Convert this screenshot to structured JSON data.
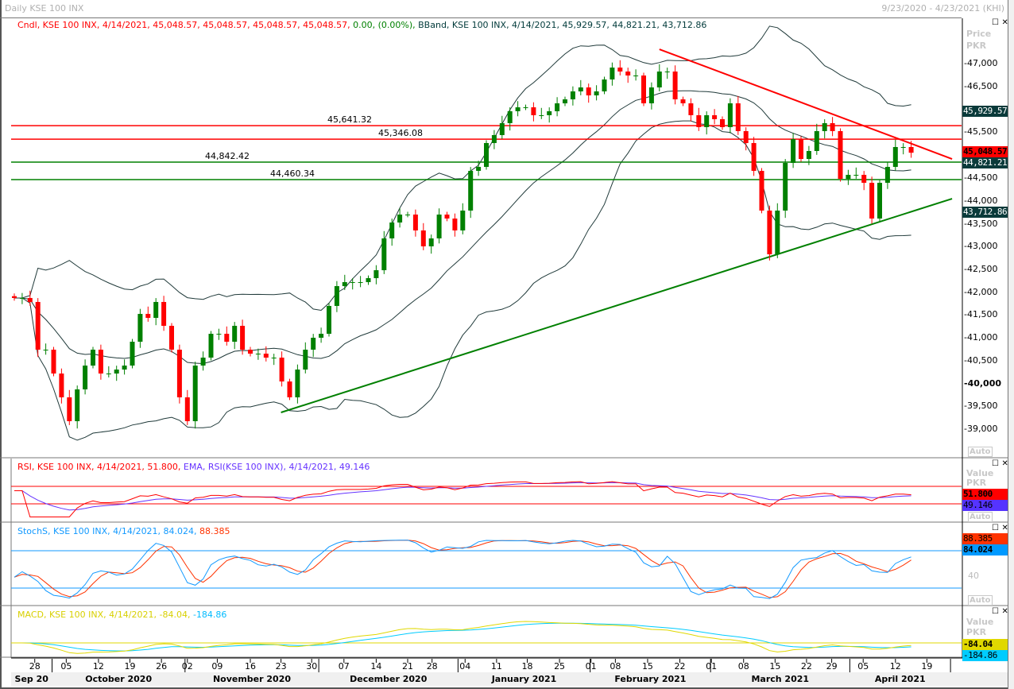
{
  "window": {
    "title": "Daily KSE 100 INX",
    "range": "9/23/2020 - 4/23/2021 (KHI)"
  },
  "main": {
    "legend": {
      "candle": "Cndl, KSE 100 INX, 4/14/2021, 45,048.57, 45,048.57, 45,048.57, 45,048.57,",
      "change": "0.00, (0.00%),",
      "bband": "BBand, KSE 100 INX, 4/14/2021, 45,929.57, 44,821.21, 43,712.86"
    },
    "axis_header": [
      "Price",
      "PKR"
    ],
    "axis_auto": "Auto",
    "tags": {
      "upper": "45,929.57",
      "last": "45,048.57",
      "middle": "44,821.21",
      "lower": "43,712.86"
    },
    "levels": [
      {
        "label": "45,641.32",
        "value": 45641.32,
        "color": "#ff0000"
      },
      {
        "label": "45,346.08",
        "value": 45346.08,
        "color": "#ff0000"
      },
      {
        "label": "44,842.42",
        "value": 44842.42,
        "color": "#008000"
      },
      {
        "label": "44,460.34",
        "value": 44460.34,
        "color": "#008000"
      }
    ]
  },
  "rsi": {
    "legend_rsi": "RSI, KSE 100 INX, 4/14/2021, 51.800,",
    "legend_ema": "EMA, RSI(KSE 100 INX), 4/14/2021, 49.146",
    "header": [
      "Value",
      "PKR"
    ],
    "tag_rsi": "51.800",
    "tag_ema": "49.146",
    "auto": "Auto"
  },
  "stoch": {
    "legend_k": "StochS, KSE 100 INX, 4/14/2021, 84.024,",
    "legend_d": "88.385",
    "tag_d": "88.385",
    "tag_k": "84.024",
    "tick40": "40",
    "auto": "Auto"
  },
  "macd": {
    "legend_macd": "MACD, KSE 100 INX, 4/14/2021, -84.04,",
    "legend_signal": "-184.86",
    "header": [
      "Value",
      "PKR"
    ],
    "tag_macd": "-84.04",
    "tag_signal": "-184.86"
  },
  "colors": {
    "up": "#008000",
    "down": "#ff0000",
    "band": "#203a3a",
    "rsi": "#ff0000",
    "ema": "#6633ff",
    "stoch_k": "#1199ff",
    "stoch_d": "#ff3300",
    "macd": "#e0d800",
    "signal": "#00ccff"
  },
  "chart_data": {
    "type": "candlestick",
    "title": "Daily KSE 100 INX",
    "ylabel": "Price PKR",
    "ylim": [
      38500,
      47600
    ],
    "yticks": [
      39000,
      39500,
      40000,
      40500,
      41000,
      41500,
      42000,
      42500,
      43000,
      43500,
      44000,
      44500,
      45500,
      46500,
      47000
    ],
    "closes": [
      41870,
      41870,
      41783,
      40739,
      40739,
      40217,
      39696,
      39174,
      39870,
      40391,
      40739,
      40217,
      40217,
      40304,
      40391,
      40913,
      41522,
      41435,
      41783,
      41261,
      40739,
      39696,
      39174,
      40391,
      40565,
      41087,
      41087,
      40913,
      41261,
      40739,
      40652,
      40652,
      40565,
      40565,
      40043,
      39696,
      40304,
      40739,
      41000,
      41087,
      41696,
      42130,
      42217,
      42217,
      42217,
      42304,
      42478,
      43174,
      43522,
      43696,
      43696,
      43348,
      43000,
      43174,
      43696,
      43609,
      43348,
      43783,
      44652,
      44739,
      45261,
      45435,
      45696,
      45957,
      46043,
      46043,
      45870,
      45870,
      45957,
      46130,
      46217,
      46391,
      46478,
      46304,
      46391,
      46652,
      46913,
      46826,
      46739,
      46739,
      46130,
      46478,
      46826,
      46826,
      46217,
      46130,
      45870,
      45609,
      45870,
      45783,
      45609,
      46130,
      45522,
      45261,
      44652,
      43783,
      42826,
      43783,
      44826,
      45348,
      44913,
      45087,
      45522,
      45696,
      45522,
      44478,
      44565,
      44565,
      44391,
      43609,
      44391,
      44739,
      45174,
      45174,
      45048.57
    ],
    "trendlines": [
      {
        "color": "#ff0000",
        "from": [
          82,
          47313
        ],
        "to": [
          119.2,
          44913
        ]
      },
      {
        "color": "#008000",
        "from": [
          33.9,
          39365
        ],
        "to": [
          119.2,
          44043
        ]
      }
    ],
    "xticks": [
      [
        "28",
        2.6
      ],
      [
        "05",
        6.6
      ],
      [
        "12",
        10.7
      ],
      [
        "19",
        14.7
      ],
      [
        "26",
        18.7
      ],
      [
        "02",
        22
      ],
      [
        "09",
        25.8
      ],
      [
        "16",
        30
      ],
      [
        "23",
        33.9
      ],
      [
        "30",
        37.8
      ],
      [
        "07",
        41.9
      ],
      [
        "14",
        46
      ],
      [
        "21",
        50
      ],
      [
        "28",
        53.1
      ],
      [
        "04",
        57.3
      ],
      [
        "11",
        61.3
      ],
      [
        "18",
        65.2
      ],
      [
        "25",
        69.3
      ],
      [
        "01",
        73.3
      ],
      [
        "08",
        76.4
      ],
      [
        "15",
        80.5
      ],
      [
        "22",
        84.6
      ],
      [
        "01",
        88.6
      ],
      [
        "08",
        92.7
      ],
      [
        "15",
        96.7
      ],
      [
        "22",
        100.7
      ],
      [
        "29",
        103.9
      ],
      [
        "05",
        107.9
      ],
      [
        "12",
        112
      ],
      [
        "19",
        116
      ]
    ],
    "months": [
      [
        "Sep 20",
        -0.5,
        4.8
      ],
      [
        "October 2020",
        4.8,
        21.7
      ],
      [
        "November 2020",
        21.7,
        38.7
      ],
      [
        "December 2020",
        38.7,
        56.4
      ],
      [
        "January 2021",
        56.4,
        73.2
      ],
      [
        "February 2021",
        73.2,
        88.5
      ],
      [
        "March 2021",
        88.5,
        106.2
      ],
      [
        "April 2021",
        106.2,
        119
      ]
    ],
    "indicators": {
      "bband": [
        20,
        2
      ],
      "rsi": 14,
      "rsi_ema": 9,
      "rsi_levels": [
        70,
        30
      ],
      "stoch": [
        14,
        3,
        3
      ],
      "stoch_levels": [
        80,
        20
      ],
      "macd": [
        12,
        26,
        9
      ]
    }
  }
}
